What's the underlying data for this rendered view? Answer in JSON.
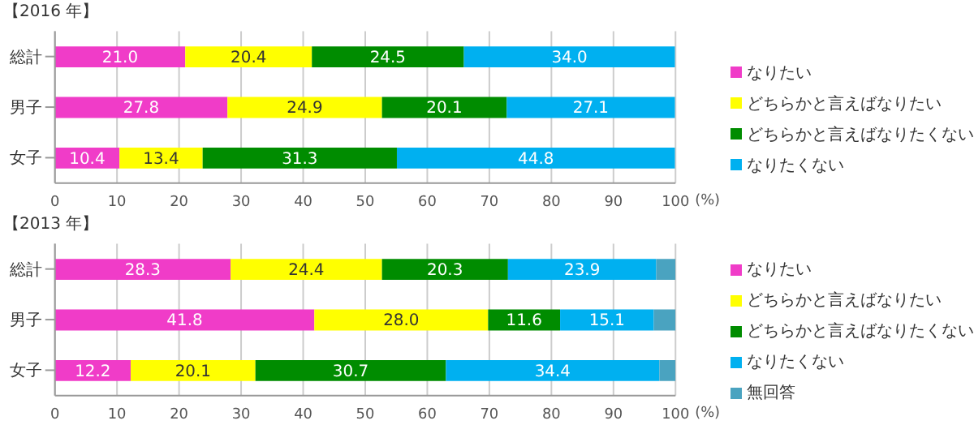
{
  "chart_data": [
    {
      "type": "bar",
      "title": "【2016 年】",
      "orientation": "horizontal",
      "stacked": true,
      "categories": [
        "総計",
        "男子",
        "女子"
      ],
      "xlabel": "(%)",
      "xlim": [
        0,
        100
      ],
      "xticks": [
        0,
        10,
        20,
        30,
        40,
        50,
        60,
        70,
        80,
        90,
        100
      ],
      "grid": "x",
      "legend": "right",
      "series": [
        {
          "name": "なりたい",
          "color": "#f03cc8",
          "values": [
            21.0,
            27.8,
            10.4
          ],
          "value_labels": [
            "21.0",
            "27.8",
            "10.4"
          ]
        },
        {
          "name": "どちらかと言えばなりたい",
          "color": "#ffff00",
          "values": [
            20.4,
            24.9,
            13.4
          ],
          "value_labels": [
            "20.4",
            "24.9",
            "13.4"
          ]
        },
        {
          "name": "どちらかと言えばなりたくない",
          "color": "#008c00",
          "values": [
            24.5,
            20.1,
            31.3
          ],
          "value_labels": [
            "24.5",
            "20.1",
            "31.3"
          ]
        },
        {
          "name": "なりたくない",
          "color": "#00b0f0",
          "values": [
            34.0,
            27.1,
            44.8
          ],
          "value_labels": [
            "34.0",
            "27.1",
            "44.8"
          ]
        }
      ]
    },
    {
      "type": "bar",
      "title": "【2013 年】",
      "orientation": "horizontal",
      "stacked": true,
      "categories": [
        "総計",
        "男子",
        "女子"
      ],
      "xlabel": "(%)",
      "xlim": [
        0,
        100
      ],
      "xticks": [
        0,
        10,
        20,
        30,
        40,
        50,
        60,
        70,
        80,
        90,
        100
      ],
      "grid": "x",
      "legend": "right",
      "series": [
        {
          "name": "なりたい",
          "color": "#f03cc8",
          "values": [
            28.3,
            41.8,
            12.2
          ],
          "value_labels": [
            "28.3",
            "41.8",
            "12.2"
          ]
        },
        {
          "name": "どちらかと言えばなりたい",
          "color": "#ffff00",
          "values": [
            24.4,
            28.0,
            20.1
          ],
          "value_labels": [
            "24.4",
            "28.0",
            "20.1"
          ]
        },
        {
          "name": "どちらかと言えばなりたくない",
          "color": "#008c00",
          "values": [
            20.3,
            11.6,
            30.7
          ],
          "value_labels": [
            "20.3",
            "11.6",
            "30.7"
          ]
        },
        {
          "name": "なりたくない",
          "color": "#00b0f0",
          "values": [
            23.9,
            15.1,
            34.4
          ],
          "value_labels": [
            "23.9",
            "15.1",
            "34.4"
          ]
        },
        {
          "name": "無回答",
          "color": "#4aa3c0",
          "values": [
            3.1,
            3.5,
            2.6
          ],
          "value_labels": [
            null,
            null,
            null
          ]
        }
      ]
    }
  ]
}
